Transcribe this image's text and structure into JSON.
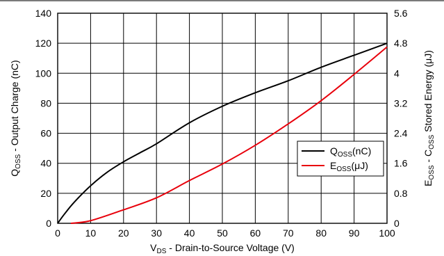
{
  "chart_data": {
    "type": "line",
    "xlabel": "VDS - Drain-to-Source Voltage (V)",
    "xlabel_main": "V",
    "xlabel_sub": "DS",
    "xlabel_rest": " - Drain-to-Source Voltage (V)",
    "ylabel_left": "QOSS - Output Charge (nC)",
    "ylabel_left_main": "Q",
    "ylabel_left_sub": "OSS",
    "ylabel_left_rest": " - Output Charge (nC)",
    "ylabel_right": "EOSS - COSS Stored Energy (μJ)",
    "ylabel_right_p1": "E",
    "ylabel_right_sub1": "OSS",
    "ylabel_right_p2": " - C",
    "ylabel_right_sub2": "OSS",
    "ylabel_right_p3": " Stored Energy (μJ)",
    "xlim": [
      0,
      100
    ],
    "ylim_left": [
      0,
      140
    ],
    "ylim_right": [
      0,
      5.6
    ],
    "x_ticks": [
      "0",
      "10",
      "20",
      "30",
      "40",
      "50",
      "60",
      "70",
      "80",
      "90",
      "100"
    ],
    "y_left_ticks": [
      "0",
      "20",
      "40",
      "60",
      "80",
      "100",
      "120",
      "140"
    ],
    "y_right_ticks": [
      "0",
      "0.8",
      "1.6",
      "2.4",
      "3.2",
      "4",
      "4.8",
      "5.6"
    ],
    "grid": true,
    "legend_position": "right-middle",
    "series": [
      {
        "name": "QOSS(nC)",
        "label_main": "Q",
        "label_sub": "OSS",
        "label_rest": "(nC)",
        "axis": "left",
        "color": "#000000",
        "x": [
          0,
          2,
          5,
          10,
          15,
          20,
          25,
          30,
          40,
          50,
          60,
          70,
          80,
          90,
          100
        ],
        "y": [
          0,
          6,
          14,
          25,
          34,
          41,
          47,
          53,
          67,
          78,
          87,
          95,
          104,
          112,
          120
        ]
      },
      {
        "name": "EOSS(μJ)",
        "label_main": "E",
        "label_sub": "OSS",
        "label_rest": "(μJ)",
        "axis": "right",
        "color": "#e8000b",
        "x": [
          4,
          10,
          20,
          30,
          40,
          50,
          60,
          70,
          80,
          90,
          100
        ],
        "y": [
          0,
          0.07,
          0.36,
          0.68,
          1.14,
          1.58,
          2.08,
          2.65,
          3.27,
          3.97,
          4.7
        ]
      }
    ]
  }
}
